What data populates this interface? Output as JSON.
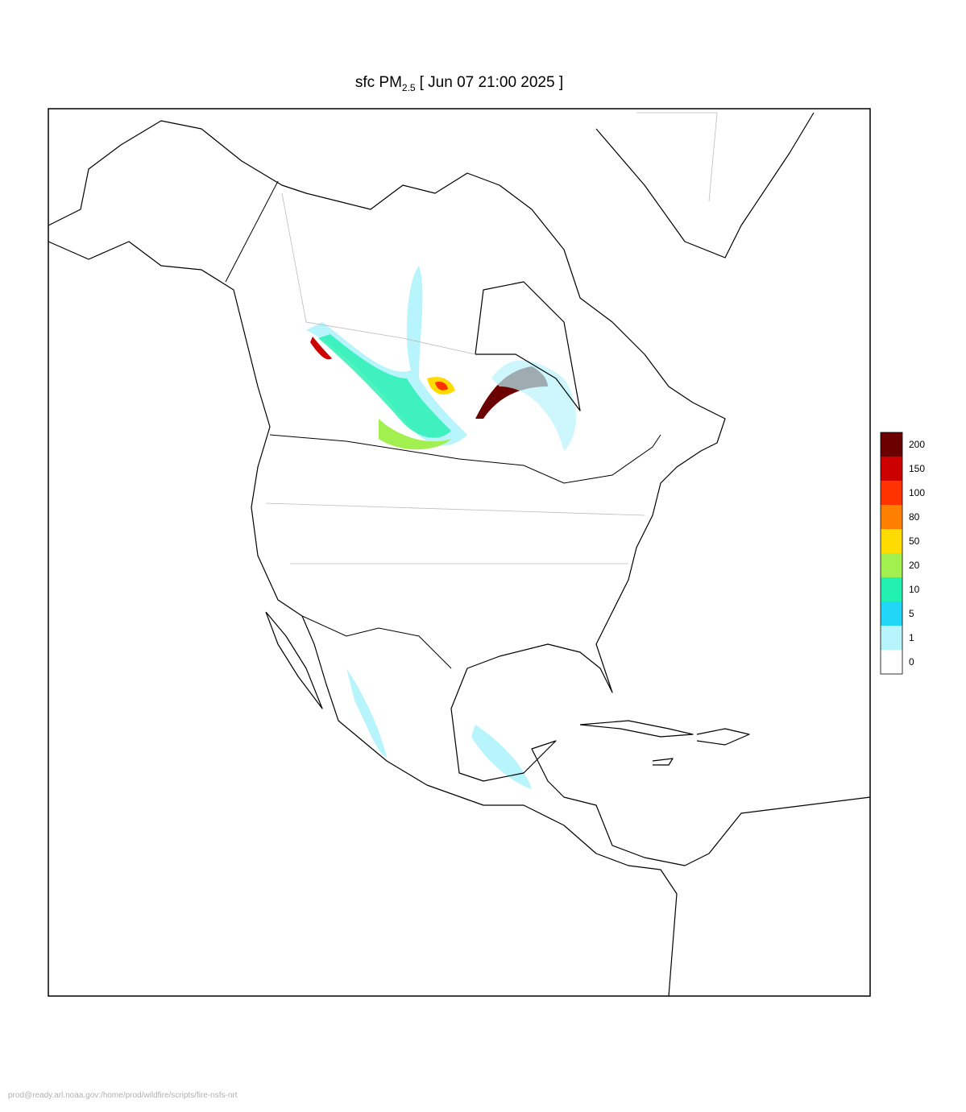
{
  "title": {
    "prefix": "sfc PM",
    "subscript": "2.5",
    "suffix": "[ Jun 07 21:00 2025 ]"
  },
  "legend": {
    "levels": [
      0,
      1,
      5,
      10,
      20,
      50,
      80,
      100,
      150,
      200
    ],
    "colors": [
      "#ffffff",
      "#b8f4fc",
      "#22d6f8",
      "#22f0b0",
      "#a2f050",
      "#ffdc00",
      "#ff8000",
      "#ff3300",
      "#cc0000",
      "#6a0000"
    ]
  },
  "footer": "prod@ready.arl.noaa.gov:/home/prod/wildfire/scripts/fire-nsfs-nrt"
}
